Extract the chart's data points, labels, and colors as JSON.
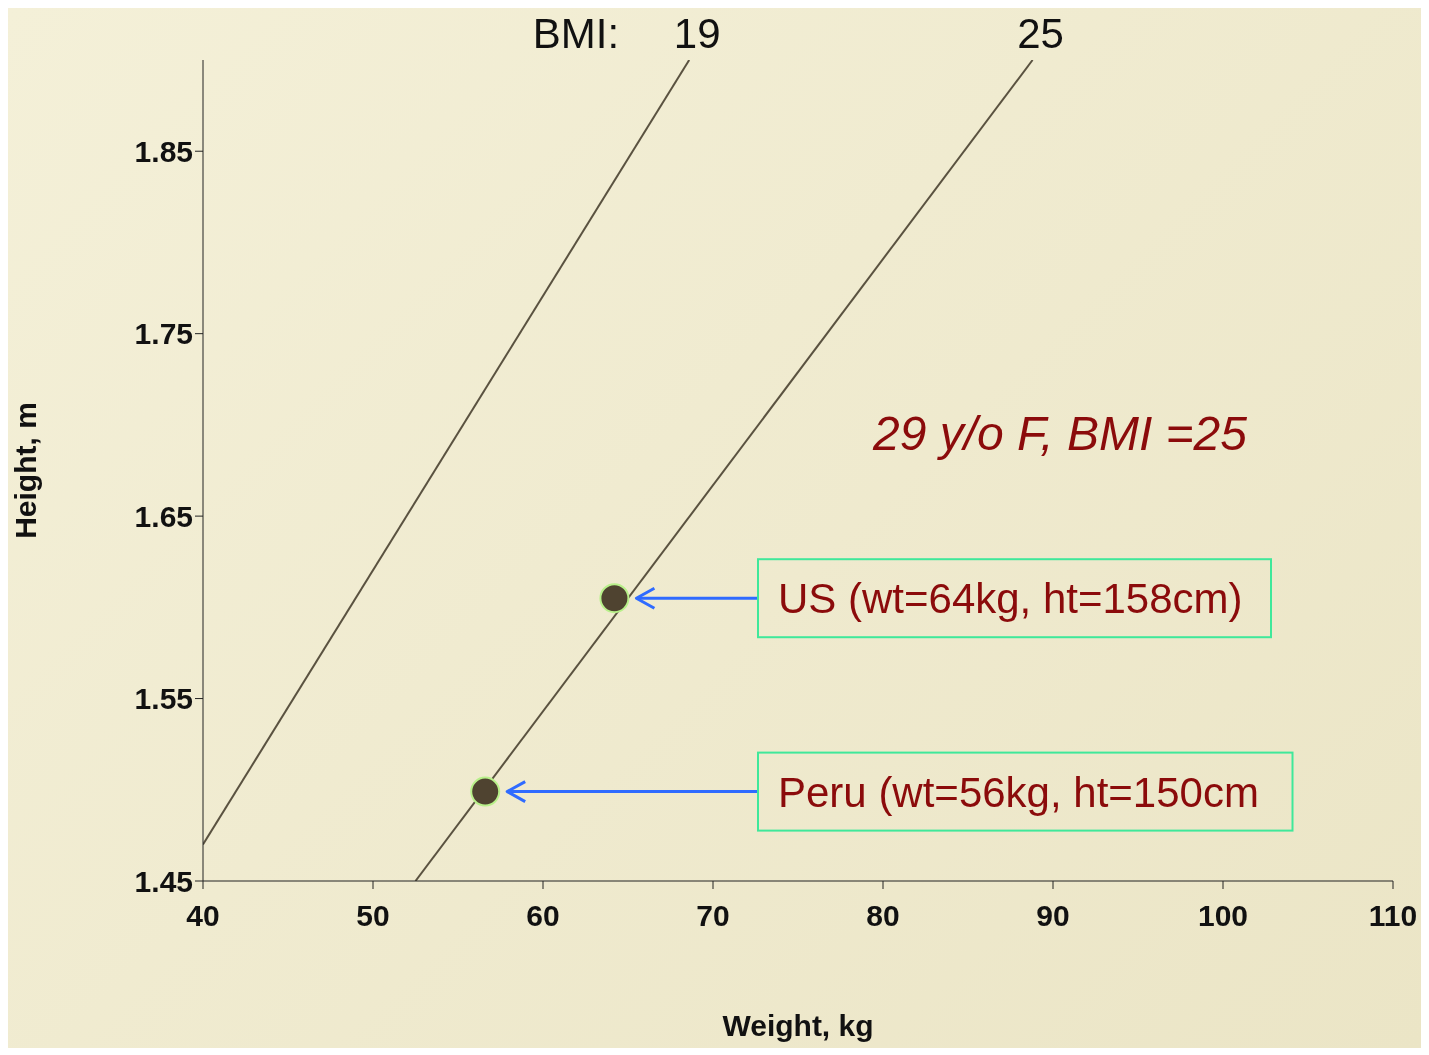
{
  "chart_data": {
    "type": "scatter",
    "xlabel": "Weight, kg",
    "ylabel": "Height, m",
    "legend_title": "BMI:",
    "xlim": [
      40,
      110
    ],
    "xticks": [
      40,
      50,
      60,
      70,
      80,
      90,
      100,
      110
    ],
    "ylim": [
      1.45,
      1.9
    ],
    "yticks": [
      1.45,
      1.55,
      1.65,
      1.75,
      1.85
    ],
    "marker": "circle",
    "series": [
      {
        "type": "line",
        "name": "19",
        "color": "#5a5240",
        "x": [
          40,
          68.6
        ],
        "values": [
          1.47,
          1.9
        ],
        "marker": "none"
      },
      {
        "type": "line",
        "name": "25",
        "color": "#5a5240",
        "x": [
          52.5,
          88.8
        ],
        "values": [
          1.45,
          1.9
        ],
        "marker": "none"
      },
      {
        "color": "#4f4330",
        "x": [
          64.2,
          56.6
        ],
        "values": [
          1.605,
          1.499
        ]
      }
    ],
    "annotations": [
      "29 y/o F, BMI =25",
      "US (wt=64kg, ht=158cm)",
      "Peru (wt=56kg, ht=150cm"
    ]
  }
}
